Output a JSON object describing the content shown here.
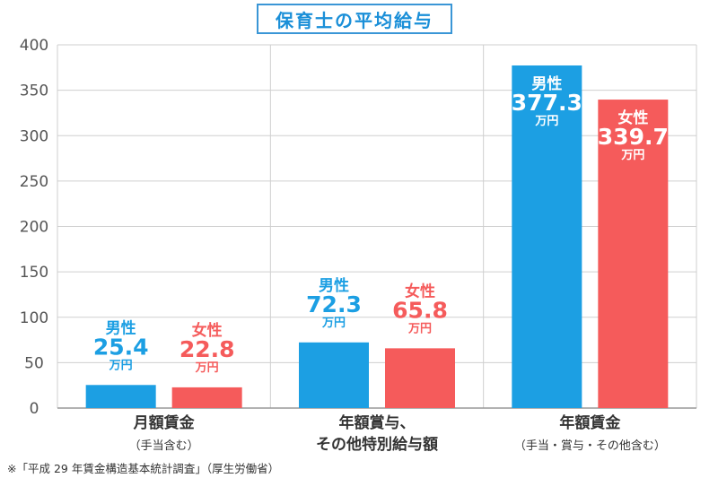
{
  "chart_data": {
    "type": "bar",
    "title": "保育士の平均給与",
    "ylim": [
      0,
      400
    ],
    "yticks": [
      0,
      50,
      100,
      150,
      200,
      250,
      300,
      350,
      400
    ],
    "grid": true,
    "categories": [
      {
        "line1": "月額賃金",
        "line2": "（手当含む）"
      },
      {
        "line1": "年額賞与、",
        "line2": "その他特別給与額"
      },
      {
        "line1": "年額賃金",
        "line2": "（手当・賞与・その他含む）"
      }
    ],
    "series": [
      {
        "name": "男性",
        "color": "#1c9fe3",
        "values": [
          25.4,
          72.3,
          377.3
        ]
      },
      {
        "name": "女性",
        "color": "#f55b5b",
        "values": [
          22.8,
          65.8,
          339.7
        ]
      }
    ],
    "unit": "万円",
    "footnote": "※「平成 29 年賃金構造基本統計調査」（厚生労働省）"
  }
}
